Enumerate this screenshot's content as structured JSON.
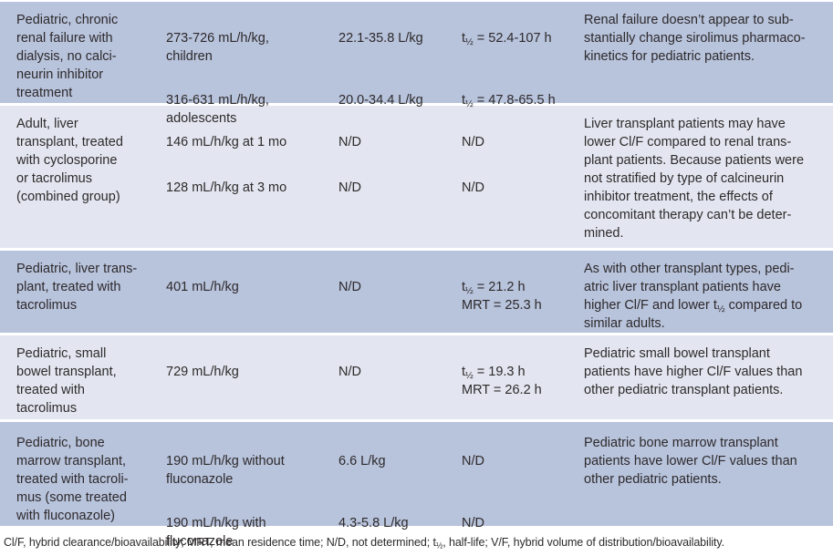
{
  "colors": {
    "row_blue": "#b8c3dc",
    "row_light": "#e3e6f0",
    "text": "#2d2a2b",
    "background": "#ffffff"
  },
  "table": {
    "rows": [
      {
        "population": "Pediatric, chronic\nrenal failure with\ndialysis, no calci-\nneurin inhibitor\ntreatment",
        "clearance": [
          "273-726 mL/h/kg,\nchildren",
          "316-631 mL/h/kg,\nadolescents"
        ],
        "volume": [
          "22.1-35.8 L/kg",
          "20.0-34.4 L/kg"
        ],
        "half_life": [
          "t½ = 52.4-107 h",
          "t½ = 47.8-65.5 h"
        ],
        "comment": "Renal failure doesn’t appear to sub-\nstantially change sirolimus pharmaco-\nkinetics for pediatric patients."
      },
      {
        "population": "Adult, liver\ntransplant, treated\nwith cyclosporine\nor tacrolimus\n(combined group)",
        "clearance": [
          "146 mL/h/kg at 1 mo",
          "128 mL/h/kg at 3 mo"
        ],
        "volume": [
          "N/D",
          "N/D"
        ],
        "half_life": [
          "N/D",
          "N/D"
        ],
        "comment": "Liver transplant patients may have\nlower Cl/F compared to renal trans-\nplant patients. Because patients were\nnot stratified by type of calcineurin\ninhibitor treatment, the effects of\nconcomitant therapy can’t be deter-\nmined."
      },
      {
        "population": "Pediatric, liver trans-\nplant, treated with\ntacrolimus",
        "clearance": [
          "401 mL/h/kg"
        ],
        "volume": [
          "N/D"
        ],
        "half_life": [
          "t½ = 21.2 h\nMRT = 25.3 h"
        ],
        "comment": "As with other transplant types, pedi-\natric liver transplant patients have\nhigher Cl/F and lower t½ compared to\nsimilar adults."
      },
      {
        "population": "Pediatric, small\nbowel transplant,\ntreated with\ntacrolimus",
        "clearance": [
          "729 mL/h/kg"
        ],
        "volume": [
          "N/D"
        ],
        "half_life": [
          "t½ = 19.3 h\nMRT = 26.2 h"
        ],
        "comment": "Pediatric small bowel transplant\npatients have higher Cl/F values than\nother pediatric transplant patients."
      },
      {
        "population": "Pediatric, bone\nmarrow transplant,\ntreated with tacroli-\nmus (some treated\nwith fluconazole)",
        "clearance": [
          "190 mL/h/kg without\nfluconazole",
          "190 mL/h/kg with\nfluconazole"
        ],
        "volume": [
          "6.6 L/kg",
          "4.3-5.8 L/kg"
        ],
        "half_life": [
          "N/D",
          "N/D"
        ],
        "comment": "Pediatric bone marrow transplant\npatients have lower Cl/F values than\nother pediatric patients."
      }
    ],
    "footnote": "Cl/F, hybrid clearance/bioavailability; MRT, mean residence time; N/D, not determined; t½, half-life; V/F, hybrid volume of distribution/bioavailability."
  }
}
